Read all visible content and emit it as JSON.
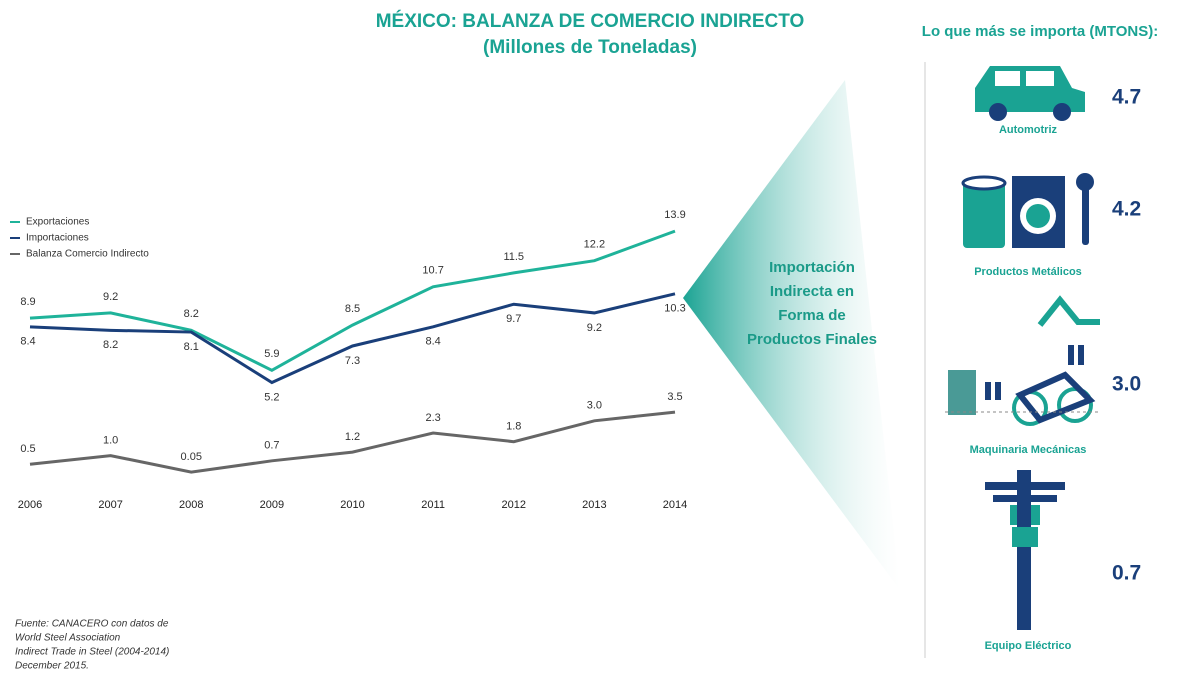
{
  "chart_data": {
    "type": "line",
    "title": "MÉXICO: BALANZA DE COMERCIO INDIRECTO",
    "subtitle": "(Millones de Toneladas)",
    "categories": [
      "2006",
      "2007",
      "2008",
      "2009",
      "2010",
      "2011",
      "2012",
      "2013",
      "2014"
    ],
    "series": [
      {
        "name": "Exportaciones",
        "color": "#1fb39a",
        "values": [
          8.9,
          9.2,
          8.2,
          5.9,
          8.5,
          10.7,
          11.5,
          12.2,
          13.9
        ],
        "value_labels": [
          "8.9",
          "9.2",
          "8.2",
          "5.9",
          "8.5",
          "10.7",
          "11.5",
          "12.2",
          "13.9"
        ]
      },
      {
        "name": "Importaciones",
        "color": "#1a3f7a",
        "values": [
          8.4,
          8.2,
          8.1,
          5.2,
          7.3,
          8.4,
          9.7,
          9.2,
          10.3
        ],
        "value_labels": [
          "8.4",
          "8.2",
          "8.1",
          "5.2",
          "7.3",
          "8.4",
          "9.7",
          "9.2",
          "10.3"
        ]
      },
      {
        "name": "Balanza Comercio Indirecto",
        "color": "#666666",
        "values": [
          0.5,
          1.0,
          0.05,
          0.7,
          1.2,
          2.3,
          1.8,
          3.0,
          3.5
        ],
        "value_labels": [
          "0.5",
          "1.0",
          "0.05",
          "0.7",
          "1.2",
          "2.3",
          "1.8",
          "3.0",
          "3.5"
        ]
      }
    ],
    "ylim": [
      0,
      15
    ],
    "legend": "upper-left",
    "annotation": [
      "Importación",
      "Indirecta en",
      "Forma de",
      "Productos Finales"
    ],
    "source": [
      "Fuente: CANACERO con datos de",
      "World Steel Association",
      "Indirect Trade in Steel (2004-2014)",
      "December 2015."
    ]
  },
  "imports": {
    "title": "Lo que más se importa (MTONS):",
    "items": [
      {
        "label": "Automotriz",
        "value": "4.7"
      },
      {
        "label": "Productos Metálicos",
        "value": "4.2"
      },
      {
        "label": "Maquinaria Mecánicas",
        "value": "3.0"
      },
      {
        "label": "Equipo Eléctrico",
        "value": "0.7"
      }
    ]
  }
}
